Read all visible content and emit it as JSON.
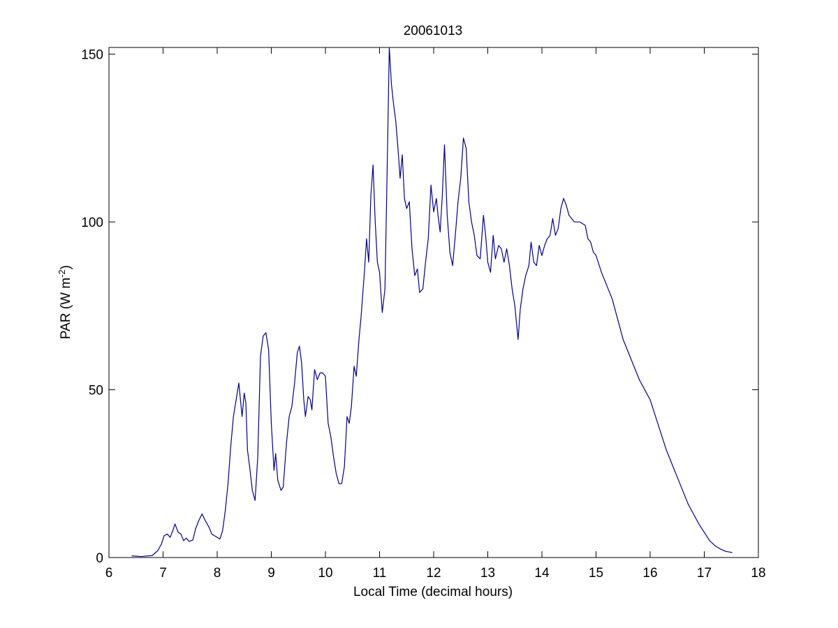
{
  "chart_data": {
    "type": "line",
    "title": "20061013",
    "xlabel": "Local Time (decimal hours)",
    "ylabel": {
      "main": "PAR (W m",
      "superscript": "-2",
      "close": ")"
    },
    "xlim": [
      6,
      18
    ],
    "ylim": [
      0,
      152
    ],
    "xticks": [
      6,
      7,
      8,
      9,
      10,
      11,
      12,
      13,
      14,
      15,
      16,
      17,
      18
    ],
    "yticks": [
      0,
      50,
      100,
      150
    ],
    "grid": false,
    "legend": "none",
    "series": [
      {
        "color": "#00008b",
        "points": [
          [
            6.42,
            0.5
          ],
          [
            6.6,
            0.3
          ],
          [
            6.8,
            0.6
          ],
          [
            6.9,
            2.0
          ],
          [
            6.97,
            4.0
          ],
          [
            7.02,
            6.5
          ],
          [
            7.08,
            7.0
          ],
          [
            7.13,
            6.0
          ],
          [
            7.18,
            8.0
          ],
          [
            7.22,
            10.0
          ],
          [
            7.28,
            7.5
          ],
          [
            7.33,
            7.0
          ],
          [
            7.38,
            5.0
          ],
          [
            7.43,
            5.8
          ],
          [
            7.48,
            4.8
          ],
          [
            7.55,
            5.2
          ],
          [
            7.6,
            8.5
          ],
          [
            7.66,
            11.0
          ],
          [
            7.72,
            13.0
          ],
          [
            7.78,
            11.0
          ],
          [
            7.85,
            9.0
          ],
          [
            7.9,
            7.0
          ],
          [
            7.95,
            6.5
          ],
          [
            8.0,
            6.0
          ],
          [
            8.05,
            5.5
          ],
          [
            8.1,
            8.0
          ],
          [
            8.15,
            14.0
          ],
          [
            8.2,
            22.0
          ],
          [
            8.25,
            33.0
          ],
          [
            8.3,
            42.0
          ],
          [
            8.35,
            47.0
          ],
          [
            8.4,
            52.0
          ],
          [
            8.43,
            47.0
          ],
          [
            8.46,
            42.0
          ],
          [
            8.5,
            49.0
          ],
          [
            8.53,
            46.0
          ],
          [
            8.56,
            32.0
          ],
          [
            8.6,
            27.0
          ],
          [
            8.65,
            20.0
          ],
          [
            8.7,
            17.0
          ],
          [
            8.75,
            30.0
          ],
          [
            8.8,
            60.0
          ],
          [
            8.85,
            66.0
          ],
          [
            8.9,
            67.0
          ],
          [
            8.95,
            62.0
          ],
          [
            9.0,
            40.0
          ],
          [
            9.05,
            26.0
          ],
          [
            9.08,
            31.0
          ],
          [
            9.12,
            23.0
          ],
          [
            9.18,
            20.0
          ],
          [
            9.22,
            21.0
          ],
          [
            9.28,
            34.0
          ],
          [
            9.33,
            42.0
          ],
          [
            9.38,
            45.0
          ],
          [
            9.43,
            52.0
          ],
          [
            9.48,
            61.0
          ],
          [
            9.52,
            63.0
          ],
          [
            9.56,
            58.0
          ],
          [
            9.6,
            47.0
          ],
          [
            9.63,
            42.0
          ],
          [
            9.68,
            48.0
          ],
          [
            9.72,
            47.0
          ],
          [
            9.75,
            44.0
          ],
          [
            9.8,
            56.0
          ],
          [
            9.85,
            53.0
          ],
          [
            9.9,
            55.0
          ],
          [
            9.95,
            55.0
          ],
          [
            10.0,
            54.0
          ],
          [
            10.05,
            40.0
          ],
          [
            10.1,
            36.0
          ],
          [
            10.15,
            30.0
          ],
          [
            10.2,
            25.0
          ],
          [
            10.25,
            22.0
          ],
          [
            10.3,
            22.0
          ],
          [
            10.35,
            27.0
          ],
          [
            10.4,
            42.0
          ],
          [
            10.44,
            40.0
          ],
          [
            10.48,
            45.0
          ],
          [
            10.53,
            57.0
          ],
          [
            10.57,
            54.0
          ],
          [
            10.62,
            65.0
          ],
          [
            10.66,
            72.0
          ],
          [
            10.72,
            85.0
          ],
          [
            10.76,
            95.0
          ],
          [
            10.8,
            88.0
          ],
          [
            10.84,
            108.0
          ],
          [
            10.88,
            117.0
          ],
          [
            10.92,
            100.0
          ],
          [
            10.96,
            88.0
          ],
          [
            11.0,
            85.0
          ],
          [
            11.05,
            73.0
          ],
          [
            11.1,
            80.0
          ],
          [
            11.14,
            115.0
          ],
          [
            11.18,
            152.0
          ],
          [
            11.22,
            141.0
          ],
          [
            11.26,
            135.0
          ],
          [
            11.3,
            130.0
          ],
          [
            11.34,
            122.0
          ],
          [
            11.38,
            113.0
          ],
          [
            11.42,
            120.0
          ],
          [
            11.46,
            107.0
          ],
          [
            11.5,
            104.0
          ],
          [
            11.55,
            106.0
          ],
          [
            11.6,
            92.0
          ],
          [
            11.65,
            84.0
          ],
          [
            11.7,
            86.0
          ],
          [
            11.74,
            79.0
          ],
          [
            11.8,
            80.0
          ],
          [
            11.85,
            88.0
          ],
          [
            11.9,
            95.0
          ],
          [
            11.95,
            111.0
          ],
          [
            12.0,
            103.0
          ],
          [
            12.05,
            107.0
          ],
          [
            12.08,
            102.0
          ],
          [
            12.12,
            97.0
          ],
          [
            12.16,
            108.0
          ],
          [
            12.2,
            123.0
          ],
          [
            12.25,
            102.0
          ],
          [
            12.3,
            91.0
          ],
          [
            12.35,
            87.0
          ],
          [
            12.4,
            96.0
          ],
          [
            12.45,
            106.0
          ],
          [
            12.5,
            113.0
          ],
          [
            12.55,
            125.0
          ],
          [
            12.6,
            122.0
          ],
          [
            12.65,
            106.0
          ],
          [
            12.7,
            100.0
          ],
          [
            12.75,
            96.0
          ],
          [
            12.8,
            90.0
          ],
          [
            12.86,
            89.0
          ],
          [
            12.92,
            102.0
          ],
          [
            12.96,
            96.0
          ],
          [
            13.0,
            88.0
          ],
          [
            13.05,
            85.0
          ],
          [
            13.1,
            96.0
          ],
          [
            13.14,
            89.0
          ],
          [
            13.2,
            93.0
          ],
          [
            13.25,
            92.0
          ],
          [
            13.3,
            88.0
          ],
          [
            13.35,
            92.0
          ],
          [
            13.4,
            87.0
          ],
          [
            13.45,
            80.0
          ],
          [
            13.5,
            75.0
          ],
          [
            13.56,
            65.0
          ],
          [
            13.6,
            74.0
          ],
          [
            13.65,
            80.0
          ],
          [
            13.7,
            84.0
          ],
          [
            13.76,
            87.0
          ],
          [
            13.8,
            94.0
          ],
          [
            13.85,
            88.0
          ],
          [
            13.9,
            87.0
          ],
          [
            13.95,
            93.0
          ],
          [
            14.0,
            90.0
          ],
          [
            14.05,
            93.0
          ],
          [
            14.1,
            95.0
          ],
          [
            14.15,
            96.0
          ],
          [
            14.2,
            101.0
          ],
          [
            14.25,
            96.0
          ],
          [
            14.3,
            98.0
          ],
          [
            14.35,
            104.0
          ],
          [
            14.4,
            107.0
          ],
          [
            14.45,
            105.0
          ],
          [
            14.5,
            102.0
          ],
          [
            14.6,
            100.0
          ],
          [
            14.7,
            100.0
          ],
          [
            14.8,
            99.0
          ],
          [
            14.85,
            95.0
          ],
          [
            14.9,
            94.0
          ],
          [
            14.95,
            91.0
          ],
          [
            15.0,
            90.0
          ],
          [
            15.1,
            85.0
          ],
          [
            15.2,
            81.0
          ],
          [
            15.3,
            77.0
          ],
          [
            15.4,
            71.0
          ],
          [
            15.5,
            65.0
          ],
          [
            15.6,
            61.0
          ],
          [
            15.7,
            57.0
          ],
          [
            15.8,
            53.0
          ],
          [
            15.9,
            50.0
          ],
          [
            16.0,
            47.0
          ],
          [
            16.1,
            42.0
          ],
          [
            16.2,
            37.0
          ],
          [
            16.3,
            32.0
          ],
          [
            16.4,
            28.0
          ],
          [
            16.5,
            24.0
          ],
          [
            16.6,
            20.0
          ],
          [
            16.7,
            16.0
          ],
          [
            16.8,
            13.0
          ],
          [
            16.9,
            10.0
          ],
          [
            17.0,
            7.5
          ],
          [
            17.1,
            5.0
          ],
          [
            17.2,
            3.5
          ],
          [
            17.3,
            2.5
          ],
          [
            17.4,
            1.8
          ],
          [
            17.52,
            1.5
          ]
        ]
      }
    ]
  }
}
